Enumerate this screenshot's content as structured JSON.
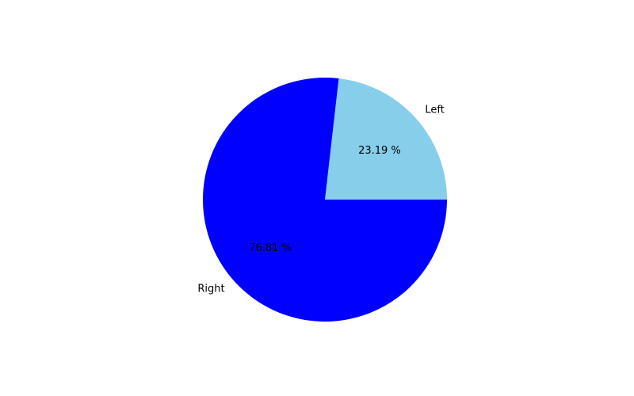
{
  "chart_data": {
    "type": "pie",
    "title": "",
    "labels": [
      "Left",
      "Right"
    ],
    "values": [
      23.19,
      76.81
    ],
    "pct_labels": [
      "23.19 %",
      "76.81 %"
    ],
    "colors": [
      "#87ceeb",
      "#0000ff"
    ],
    "start_angle_deg": 0,
    "direction": "counterclockwise",
    "legend": "none"
  }
}
